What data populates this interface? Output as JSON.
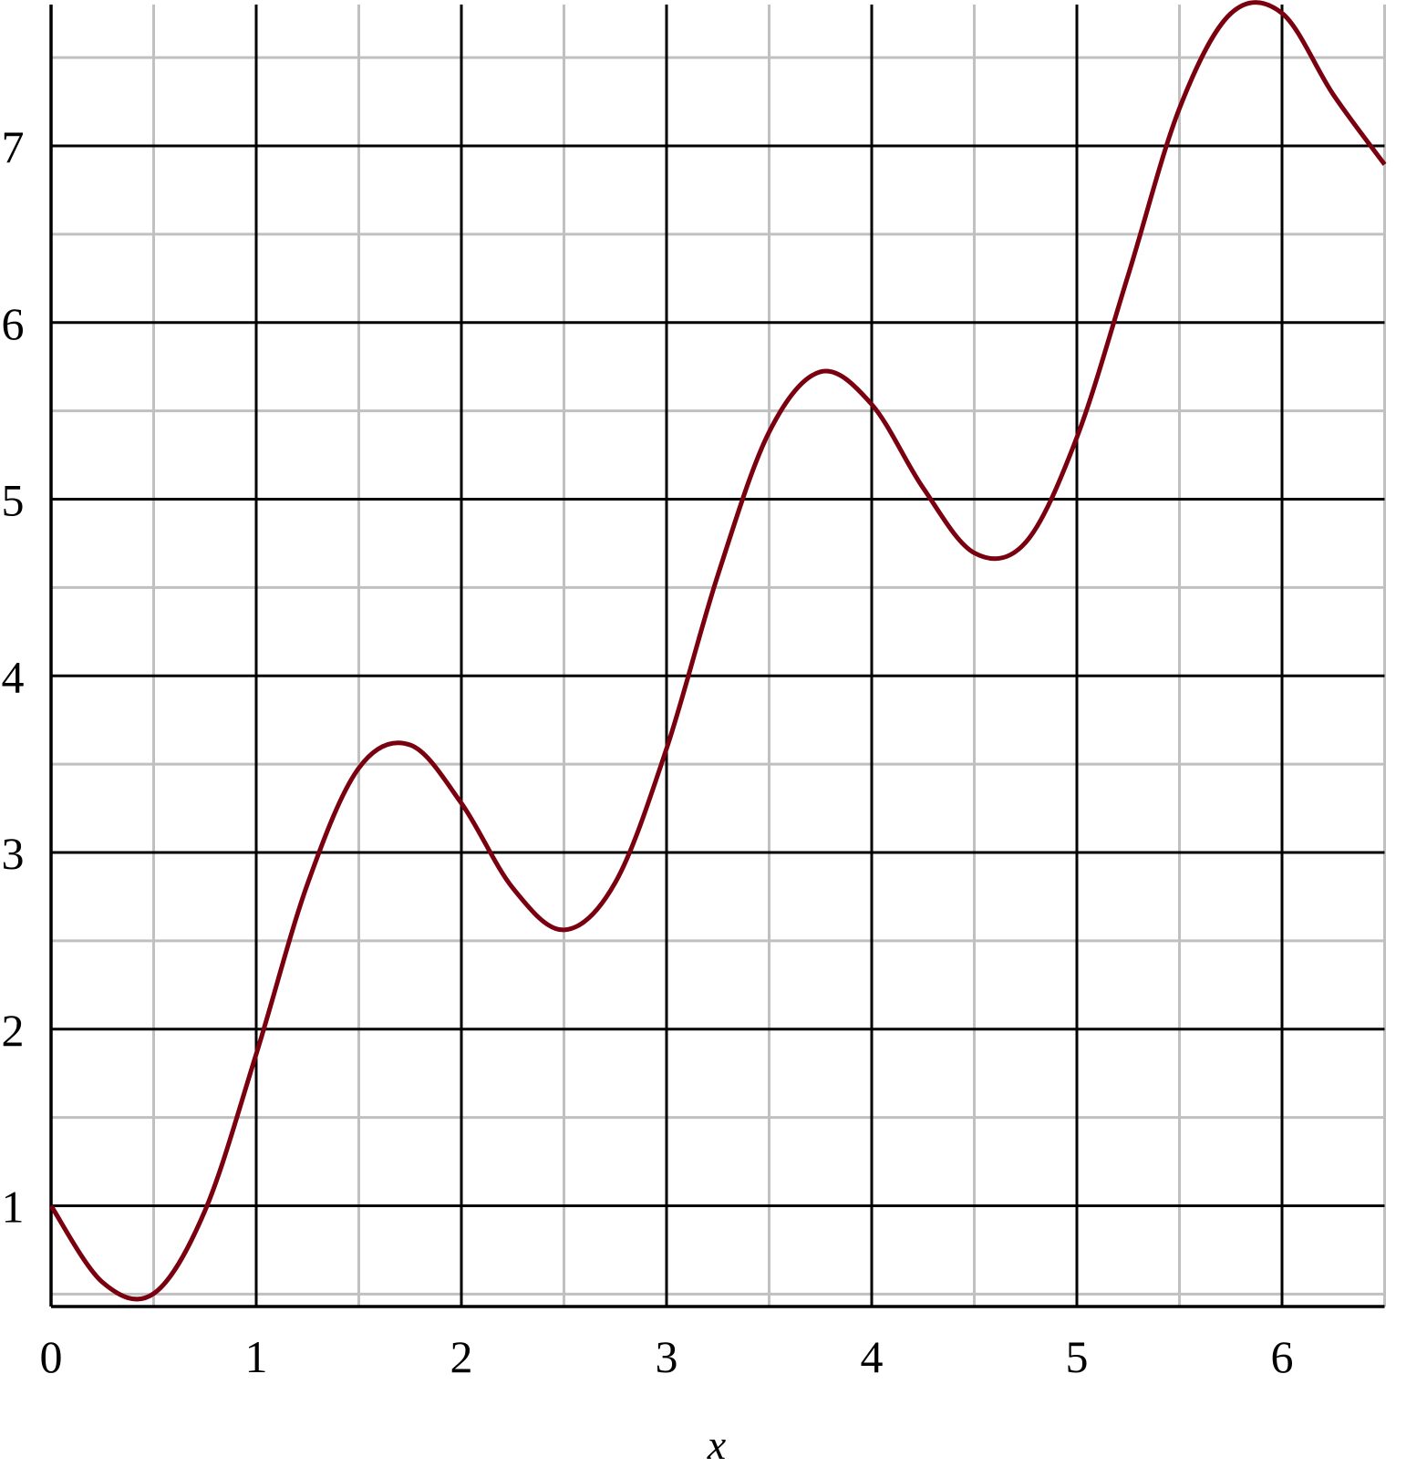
{
  "chart_data": {
    "type": "line",
    "title": "",
    "xlabel": "x",
    "ylabel": "",
    "xlim": [
      0,
      6.5
    ],
    "ylim": [
      0.43,
      7.8
    ],
    "grid": true,
    "major_grid_step": 1,
    "minor_grid_step": 0.5,
    "x_ticks": [
      "0",
      "1",
      "2",
      "3",
      "4",
      "5",
      "6"
    ],
    "y_ticks": [
      "1",
      "2",
      "3",
      "4",
      "5",
      "6",
      "7"
    ],
    "colors": {
      "line": "#7a0010",
      "major_grid": "#000000",
      "minor_grid": "#c0c0c0"
    },
    "series": [
      {
        "x": [
          0,
          0.25,
          0.5,
          0.75,
          1,
          1.25,
          1.5,
          1.75,
          2,
          2.25,
          2.5,
          2.75,
          3,
          3.25,
          3.5,
          3.75,
          4,
          4.25,
          4.5,
          4.75,
          5,
          5.25,
          5.5,
          5.75,
          6,
          6.25,
          6.5
        ],
        "y": [
          1.0,
          0.568,
          0.503,
          0.972,
          1.859,
          2.822,
          3.478,
          3.609,
          3.279,
          2.8,
          2.562,
          2.83,
          3.588,
          4.57,
          5.38,
          5.721,
          5.537,
          5.065,
          4.696,
          4.755,
          5.35,
          6.268,
          7.212,
          7.749,
          7.751,
          7.29,
          6.895
        ]
      }
    ]
  }
}
